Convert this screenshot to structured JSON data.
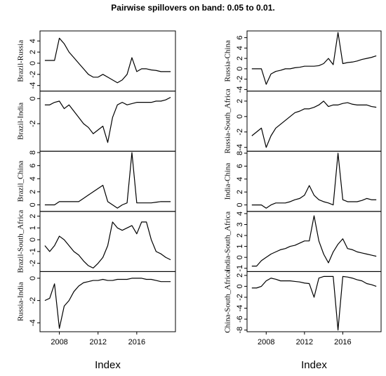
{
  "title": "Pairwise spillovers on band: 0.05 to 0.01.",
  "chart_data": [
    {
      "type": "line",
      "ylabel": "Brazil-Russia",
      "color": "#000000",
      "xlim": [
        2006,
        2020
      ],
      "ylim": [
        -5,
        5.8
      ],
      "yticks": [
        -4,
        -2,
        0,
        2,
        4
      ],
      "x": [
        2006.5,
        2007,
        2007.5,
        2008,
        2008.5,
        2009,
        2009.5,
        2010,
        2010.5,
        2011,
        2011.5,
        2012,
        2012.5,
        2013,
        2013.5,
        2014,
        2014.5,
        2015,
        2015.5,
        2016,
        2016.5,
        2017,
        2017.5,
        2018,
        2018.5,
        2019,
        2019.5
      ],
      "values": [
        0.5,
        0.5,
        0.5,
        4.5,
        3.5,
        2,
        1,
        0,
        -1,
        -2,
        -2.5,
        -2.5,
        -2,
        -2.5,
        -3,
        -3.5,
        -3,
        -2,
        1,
        -1.5,
        -1,
        -1,
        -1.2,
        -1.3,
        -1.5,
        -1.5,
        -1.5
      ]
    },
    {
      "type": "line",
      "ylabel": "Brazil-India",
      "color": "#000000",
      "xlim": [
        2006,
        2020
      ],
      "ylim": [
        -4.2,
        0.6
      ],
      "yticks": [
        -2,
        0
      ],
      "x": [
        2006.5,
        2007,
        2007.5,
        2008,
        2008.5,
        2009,
        2009.5,
        2010,
        2010.5,
        2011,
        2011.5,
        2012,
        2012.5,
        2013,
        2013.5,
        2014,
        2014.5,
        2015,
        2015.5,
        2016,
        2016.5,
        2017,
        2017.5,
        2018,
        2018.5,
        2019,
        2019.5
      ],
      "values": [
        -0.5,
        -0.5,
        -0.3,
        -0.2,
        -0.8,
        -0.5,
        -1,
        -1.5,
        -2,
        -2.3,
        -2.8,
        -2.5,
        -2.2,
        -3.5,
        -1.5,
        -0.5,
        -0.3,
        -0.5,
        -0.4,
        -0.3,
        -0.3,
        -0.3,
        -0.3,
        -0.2,
        -0.2,
        -0.1,
        0.1
      ]
    },
    {
      "type": "line",
      "ylabel": "Brazil_China",
      "color": "#000000",
      "xlim": [
        2006,
        2020
      ],
      "ylim": [
        -1,
        8.2
      ],
      "yticks": [
        0,
        2,
        4,
        6,
        8
      ],
      "x": [
        2006.5,
        2007,
        2007.5,
        2008,
        2008.5,
        2009,
        2009.5,
        2010,
        2010.5,
        2011,
        2011.5,
        2012,
        2012.5,
        2013,
        2013.5,
        2014,
        2014.5,
        2015,
        2015.5,
        2016,
        2016.5,
        2017,
        2017.5,
        2018,
        2018.5,
        2019,
        2019.5
      ],
      "values": [
        0,
        0,
        0,
        0.5,
        0.5,
        0.5,
        0.5,
        0.5,
        1,
        1.5,
        2,
        2.5,
        3,
        0.5,
        0,
        -0.5,
        0,
        0.3,
        8,
        0.3,
        0.3,
        0.3,
        0.3,
        0.4,
        0.5,
        0.5,
        0.5
      ]
    },
    {
      "type": "line",
      "ylabel": "Brazil-South_Africa",
      "color": "#000000",
      "xlim": [
        2006,
        2020
      ],
      "ylim": [
        -2.7,
        2.4
      ],
      "yticks": [
        -2,
        -1,
        0,
        1,
        2
      ],
      "x": [
        2006.5,
        2007,
        2007.5,
        2008,
        2008.5,
        2009,
        2009.5,
        2010,
        2010.5,
        2011,
        2011.5,
        2012,
        2012.5,
        2013,
        2013.5,
        2014,
        2014.5,
        2015,
        2015.5,
        2016,
        2016.5,
        2017,
        2017.5,
        2018,
        2018.5,
        2019,
        2019.5
      ],
      "values": [
        -0.5,
        -1,
        -0.5,
        0.3,
        0,
        -0.5,
        -1,
        -1.3,
        -1.8,
        -2.2,
        -2.4,
        -2,
        -1.5,
        -0.5,
        1.5,
        1,
        0.8,
        1,
        1.2,
        0.5,
        1.5,
        1.5,
        0,
        -1,
        -1.2,
        -1.5,
        -1.7
      ]
    },
    {
      "type": "line",
      "ylabel": "Russia-India",
      "xlabel": "Index",
      "color": "#000000",
      "xlim": [
        2006,
        2020
      ],
      "xticks": [
        2008,
        2012,
        2016
      ],
      "ylim": [
        -4.8,
        0.6
      ],
      "yticks": [
        -4,
        -2,
        0
      ],
      "x": [
        2006.5,
        2007,
        2007.5,
        2008,
        2008.5,
        2009,
        2009.5,
        2010,
        2010.5,
        2011,
        2011.5,
        2012,
        2012.5,
        2013,
        2013.5,
        2014,
        2014.5,
        2015,
        2015.5,
        2016,
        2016.5,
        2017,
        2017.5,
        2018,
        2018.5,
        2019,
        2019.5
      ],
      "values": [
        -2,
        -1.8,
        -0.5,
        -4.5,
        -2.5,
        -2,
        -1.2,
        -0.7,
        -0.4,
        -0.3,
        -0.2,
        -0.2,
        -0.1,
        -0.2,
        -0.2,
        -0.1,
        -0.1,
        -0.1,
        0,
        0,
        0,
        -0.1,
        -0.1,
        -0.2,
        -0.3,
        -0.3,
        -0.3
      ]
    },
    {
      "type": "line",
      "ylabel": "Russia-China",
      "color": "#000000",
      "xlim": [
        2006,
        2020
      ],
      "ylim": [
        -4.3,
        7.3
      ],
      "yticks": [
        -4,
        -2,
        0,
        2,
        4,
        6
      ],
      "x": [
        2006.5,
        2007,
        2007.5,
        2008,
        2008.5,
        2009,
        2009.5,
        2010,
        2010.5,
        2011,
        2011.5,
        2012,
        2012.5,
        2013,
        2013.5,
        2014,
        2014.5,
        2015,
        2015.5,
        2016,
        2016.5,
        2017,
        2017.5,
        2018,
        2018.5,
        2019,
        2019.5
      ],
      "values": [
        0,
        0,
        0,
        -3,
        -1,
        -0.5,
        -0.3,
        0,
        0,
        0.2,
        0.3,
        0.5,
        0.5,
        0.5,
        0.6,
        1,
        2,
        0.8,
        7,
        1,
        1.2,
        1.3,
        1.5,
        1.8,
        2,
        2.2,
        2.5
      ]
    },
    {
      "type": "line",
      "ylabel": "Russia-South_Africa",
      "color": "#000000",
      "xlim": [
        2006,
        2020
      ],
      "ylim": [
        -4.5,
        3.3
      ],
      "yticks": [
        -4,
        -2,
        0,
        2
      ],
      "x": [
        2006.5,
        2007,
        2007.5,
        2008,
        2008.5,
        2009,
        2009.5,
        2010,
        2010.5,
        2011,
        2011.5,
        2012,
        2012.5,
        2013,
        2013.5,
        2014,
        2014.5,
        2015,
        2015.5,
        2016,
        2016.5,
        2017,
        2017.5,
        2018,
        2018.5,
        2019,
        2019.5
      ],
      "values": [
        -2.5,
        -2,
        -1.5,
        -4,
        -2.5,
        -1.5,
        -1,
        -0.5,
        0,
        0.5,
        0.7,
        1,
        1,
        1.2,
        1.5,
        2,
        1.3,
        1.5,
        1.5,
        1.7,
        1.8,
        1.6,
        1.5,
        1.5,
        1.5,
        1.3,
        1.2
      ]
    },
    {
      "type": "line",
      "ylabel": "India-China",
      "color": "#000000",
      "xlim": [
        2006,
        2020
      ],
      "ylim": [
        -1,
        8.3
      ],
      "yticks": [
        0,
        2,
        4,
        6,
        8
      ],
      "x": [
        2006.5,
        2007,
        2007.5,
        2008,
        2008.5,
        2009,
        2009.5,
        2010,
        2010.5,
        2011,
        2011.5,
        2012,
        2012.5,
        2013,
        2013.5,
        2014,
        2014.5,
        2015,
        2015.5,
        2016,
        2016.5,
        2017,
        2017.5,
        2018,
        2018.5,
        2019,
        2019.5
      ],
      "values": [
        0,
        0,
        0,
        -0.5,
        0,
        0.3,
        0.3,
        0.3,
        0.5,
        0.8,
        1,
        1.5,
        3,
        1.5,
        0.8,
        0.5,
        0.3,
        0,
        8,
        0.8,
        0.5,
        0.5,
        0.5,
        0.7,
        1,
        0.8,
        0.8
      ]
    },
    {
      "type": "line",
      "ylabel": "India-South_Africa",
      "color": "#000000",
      "xlim": [
        2006,
        2020
      ],
      "ylim": [
        -1.3,
        4.2
      ],
      "yticks": [
        -1,
        0,
        1,
        2,
        3,
        4
      ],
      "x": [
        2006.5,
        2007,
        2007.5,
        2008,
        2008.5,
        2009,
        2009.5,
        2010,
        2010.5,
        2011,
        2011.5,
        2012,
        2012.5,
        2013,
        2013.5,
        2014,
        2014.5,
        2015,
        2015.5,
        2016,
        2016.5,
        2017,
        2017.5,
        2018,
        2018.5,
        2019,
        2019.5
      ],
      "values": [
        -0.8,
        -0.8,
        -0.3,
        0,
        0.3,
        0.5,
        0.7,
        0.8,
        1,
        1.1,
        1.3,
        1.5,
        1.5,
        3.8,
        1.5,
        0.3,
        -0.5,
        0.5,
        1.2,
        1.7,
        0.8,
        0.7,
        0.5,
        0.4,
        0.3,
        0.2,
        0.1
      ]
    },
    {
      "type": "line",
      "ylabel": "China-South_Africa",
      "xlabel": "Index",
      "color": "#000000",
      "xlim": [
        2006,
        2020
      ],
      "xticks": [
        2008,
        2012,
        2016
      ],
      "ylim": [
        -8.3,
        2.7
      ],
      "yticks": [
        -8,
        -6,
        -4,
        -2,
        0,
        2
      ],
      "x": [
        2006.5,
        2007,
        2007.5,
        2008,
        2008.5,
        2009,
        2009.5,
        2010,
        2010.5,
        2011,
        2011.5,
        2012,
        2012.5,
        2013,
        2013.5,
        2014,
        2014.5,
        2015,
        2015.5,
        2016,
        2016.5,
        2017,
        2017.5,
        2018,
        2018.5,
        2019,
        2019.5
      ],
      "values": [
        -0.3,
        -0.3,
        0,
        1,
        1.5,
        1.3,
        1,
        1,
        1,
        0.9,
        0.8,
        0.6,
        0.5,
        -2,
        1.5,
        1.8,
        1.8,
        1.8,
        -8,
        1.8,
        1.7,
        1.5,
        1.2,
        1,
        0.5,
        0.3,
        0
      ]
    }
  ]
}
